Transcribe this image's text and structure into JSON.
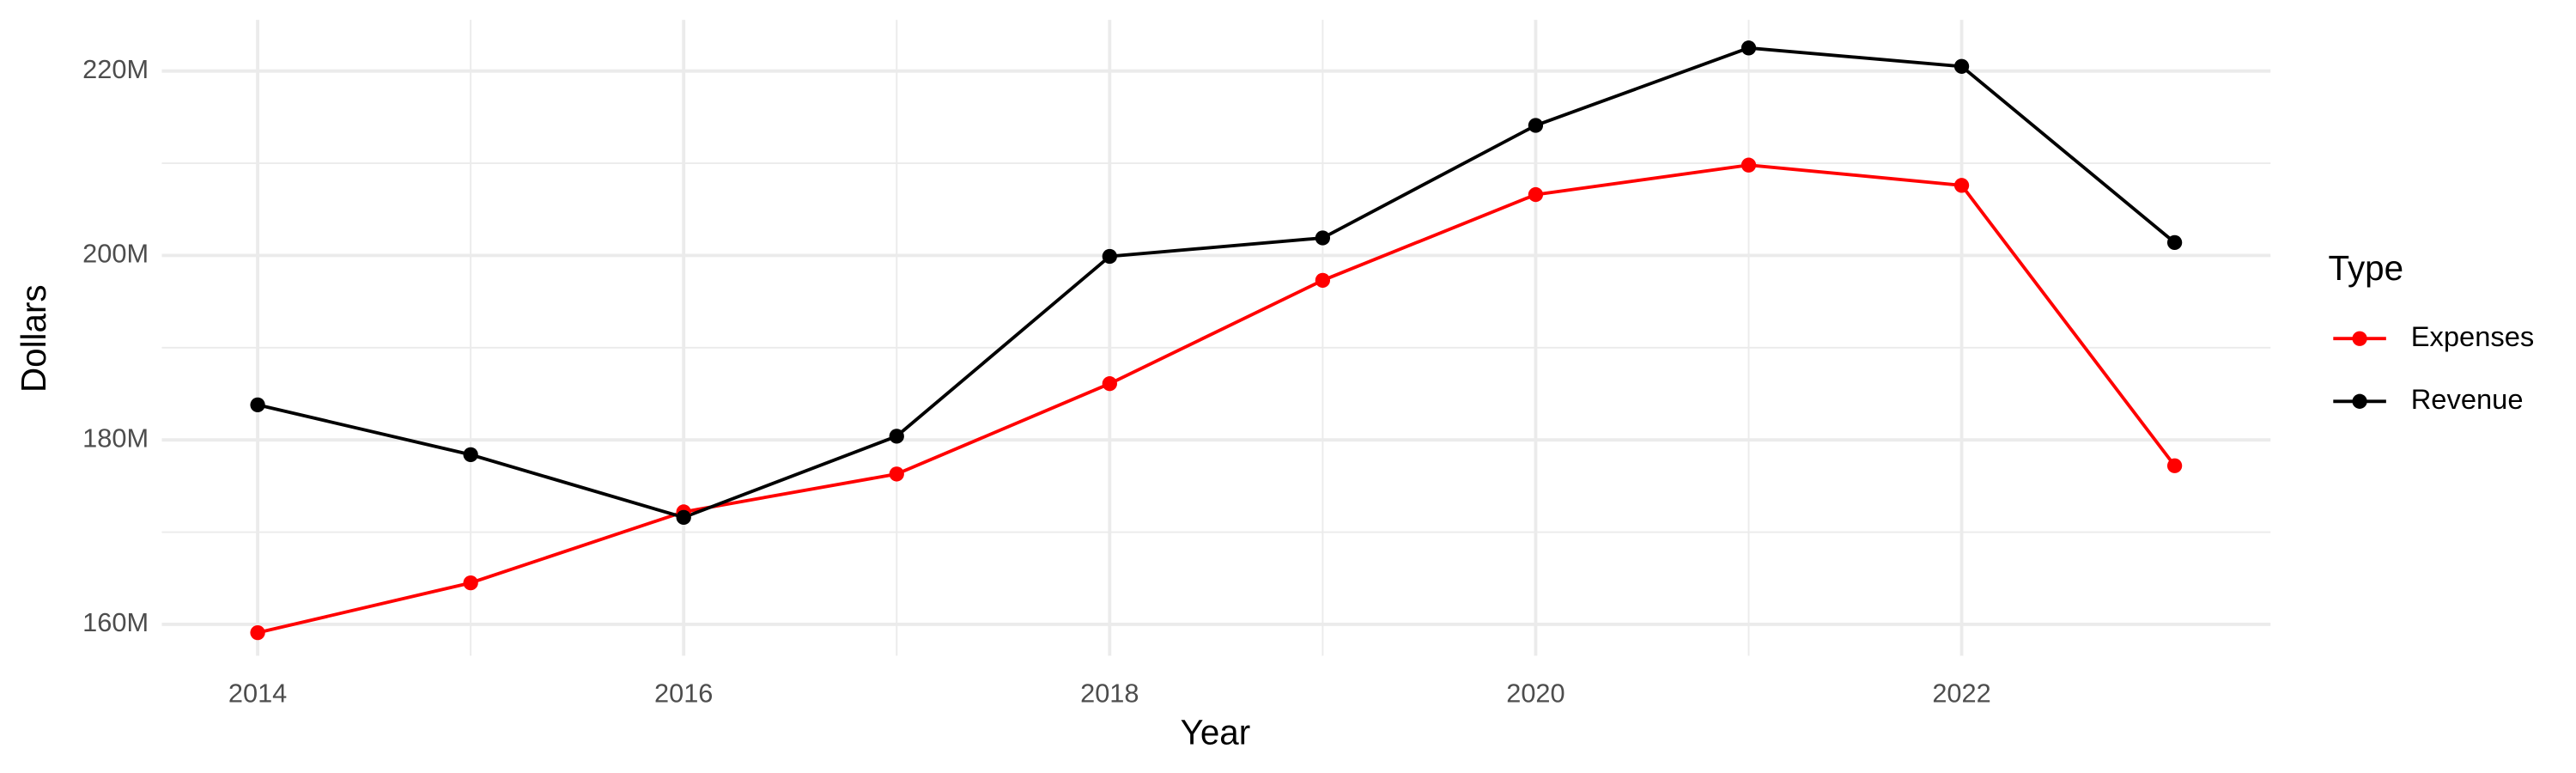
{
  "chart_data": {
    "type": "line",
    "x_label": "Year",
    "y_label": "Dollars",
    "legend_title": "Type",
    "legend_position": "right",
    "grid": true,
    "x": [
      2014,
      2015,
      2016,
      2017,
      2018,
      2019,
      2020,
      2021,
      2022,
      2023
    ],
    "xlim": [
      2013.55,
      2023.45
    ],
    "xticks": [
      2014,
      2016,
      2018,
      2020,
      2022
    ],
    "ylim": [
      156600000,
      225550000
    ],
    "yticks": [
      {
        "value": 160000000,
        "label": "160M"
      },
      {
        "value": 180000000,
        "label": "180M"
      },
      {
        "value": 200000000,
        "label": "200M"
      },
      {
        "value": 220000000,
        "label": "220M"
      }
    ],
    "series": [
      {
        "name": "Expenses",
        "color": "#ff0000",
        "values": [
          159100000,
          164500000,
          172200000,
          176300000,
          186100000,
          197300000,
          206600000,
          209800000,
          207600000,
          177200000
        ]
      },
      {
        "name": "Revenue",
        "color": "#000000",
        "values": [
          183800000,
          178400000,
          171600000,
          180400000,
          199900000,
          201900000,
          214100000,
          222500000,
          220500000,
          201400000
        ]
      }
    ]
  }
}
